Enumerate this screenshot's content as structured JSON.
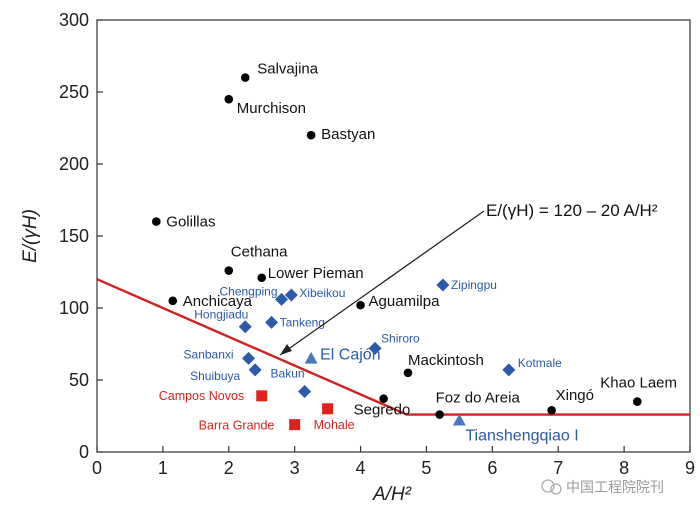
{
  "chart_data": {
    "type": "scatter",
    "xlabel": "A/H²",
    "ylabel": "E/(γH)",
    "xlim": [
      0,
      9
    ],
    "ylim": [
      0,
      300
    ],
    "xticks": [
      0,
      1,
      2,
      3,
      4,
      5,
      6,
      7,
      8,
      9
    ],
    "yticks": [
      0,
      50,
      100,
      150,
      200,
      250,
      300
    ],
    "xtick_labels": [
      "0",
      "1",
      "2",
      "3",
      "4",
      "5",
      "6",
      "7",
      "8",
      "9"
    ],
    "ytick_labels": [
      "0",
      "50",
      "100",
      "150",
      "200",
      "250",
      "300"
    ],
    "grid": false,
    "series": [
      {
        "name": "black-circles",
        "marker": "circle",
        "color": "#000000",
        "points": [
          {
            "label": "Salvajina",
            "x": 2.25,
            "y": 260
          },
          {
            "label": "Murchison",
            "x": 2.0,
            "y": 245
          },
          {
            "label": "Bastyan",
            "x": 3.25,
            "y": 220
          },
          {
            "label": "Golillas",
            "x": 0.9,
            "y": 160
          },
          {
            "label": "Cethana",
            "x": 2.0,
            "y": 126
          },
          {
            "label": "Lower Pieman",
            "x": 2.5,
            "y": 121
          },
          {
            "label": "Anchicaya",
            "x": 1.15,
            "y": 105
          },
          {
            "label": "Aguamilpa",
            "x": 4.0,
            "y": 102
          },
          {
            "label": "Mackintosh",
            "x": 4.72,
            "y": 55
          },
          {
            "label": "Segredo",
            "x": 4.35,
            "y": 37
          },
          {
            "label": "Foz do Areia",
            "x": 5.2,
            "y": 26
          },
          {
            "label": "Xingó",
            "x": 6.9,
            "y": 29
          },
          {
            "label": "Khao Laem",
            "x": 8.2,
            "y": 35
          }
        ]
      },
      {
        "name": "blue-diamonds",
        "marker": "diamond",
        "color": "#2a5aa8",
        "points": [
          {
            "label": "Chengping",
            "x": 2.8,
            "y": 106
          },
          {
            "label": "Xibeikou",
            "x": 2.95,
            "y": 109
          },
          {
            "label": "Zipingpu",
            "x": 5.25,
            "y": 116
          },
          {
            "label": "Hongjiadu",
            "x": 2.25,
            "y": 87
          },
          {
            "label": "Tankeng",
            "x": 2.65,
            "y": 90
          },
          {
            "label": "Shiroro",
            "x": 4.22,
            "y": 72
          },
          {
            "label": "Sanbanxi",
            "x": 2.3,
            "y": 65
          },
          {
            "label": "Shuibuya",
            "x": 2.4,
            "y": 57
          },
          {
            "label": "Kotmale",
            "x": 6.25,
            "y": 57
          },
          {
            "label": "Bakun",
            "x": 3.15,
            "y": 42
          }
        ]
      },
      {
        "name": "blue-triangles",
        "marker": "triangle",
        "color": "#4a78c0",
        "points": [
          {
            "label": "El Cajón",
            "x": 3.25,
            "y": 65
          },
          {
            "label": "Tianshengqiao I",
            "x": 5.5,
            "y": 22
          }
        ]
      },
      {
        "name": "red-squares",
        "marker": "square",
        "color": "#e0201a",
        "points": [
          {
            "label": "Campos Novos",
            "x": 2.5,
            "y": 39
          },
          {
            "label": "Barra Grande",
            "x": 3.0,
            "y": 19
          },
          {
            "label": "Mohale",
            "x": 3.5,
            "y": 30
          }
        ]
      }
    ],
    "trend_line": {
      "color": "#cc2222",
      "points": [
        {
          "x": 0,
          "y": 120
        },
        {
          "x": 4.7,
          "y": 26
        },
        {
          "x": 9,
          "y": 26
        }
      ],
      "equation": "E/(γH) = 120 – 20 A/H²"
    }
  },
  "watermark": "中国工程院院刊"
}
